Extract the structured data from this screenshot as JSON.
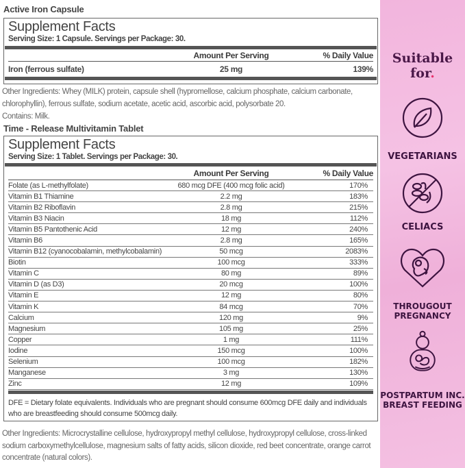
{
  "product1": {
    "name": "Active Iron Capsule",
    "title": "Supplement Facts",
    "serving": "Serving Size: 1 Capsule. Servings per Package: 30.",
    "col_amount": "Amount Per Serving",
    "col_dv": "% Daily Value",
    "rows": [
      {
        "name": "Iron (ferrous sulfate)",
        "amount": "25 mg",
        "dv": "139%"
      }
    ],
    "other_ingredients": "Other Ingredients: Whey (MILK) protein, capsule shell (hypromellose, calcium phosphate, calcium carbonate, chlorophyllin), ferrous sulfate, sodium acetate, acetic acid, ascorbic acid, polysorbate 20.",
    "contains": "Contains: Milk."
  },
  "product2": {
    "name": "Time - Release Multivitamin Tablet",
    "title": "Supplement Facts",
    "serving": "Serving Size: 1 Tablet. Servings per Package: 30.",
    "col_amount": "Amount Per Serving",
    "col_dv": "% Daily Value",
    "rows": [
      {
        "name": "Folate (as L-methylfolate)",
        "amount": "680 mcg DFE (400 mcg folic acid)",
        "dv": "170%"
      },
      {
        "name": "Vitamin B1 Thiamine",
        "amount": "2.2 mg",
        "dv": "183%"
      },
      {
        "name": "Vitamin B2 Riboflavin",
        "amount": "2.8 mg",
        "dv": "215%"
      },
      {
        "name": "Vitamin B3 Niacin",
        "amount": "18 mg",
        "dv": "112%"
      },
      {
        "name": "Vitamin B5 Pantothenic Acid",
        "amount": "12 mg",
        "dv": "240%"
      },
      {
        "name": "Vitamin B6",
        "amount": "2.8 mg",
        "dv": "165%"
      },
      {
        "name": "Vitamin B12 (cyanocobalamin, methylcobalamin)",
        "amount": "50 mcg",
        "dv": "2083%"
      },
      {
        "name": "Biotin",
        "amount": "100 mcg",
        "dv": "333%"
      },
      {
        "name": "Vitamin C",
        "amount": "80 mg",
        "dv": "89%"
      },
      {
        "name": "Vitamin D (as D3)",
        "amount": "20 mcg",
        "dv": "100%"
      },
      {
        "name": "Vitamin E",
        "amount": "12 mg",
        "dv": "80%"
      },
      {
        "name": "Vitamin K",
        "amount": "84 mcg",
        "dv": "70%"
      },
      {
        "name": "Calcium",
        "amount": "120 mg",
        "dv": "9%"
      },
      {
        "name": "Magnesium",
        "amount": "105 mg",
        "dv": "25%"
      },
      {
        "name": "Copper",
        "amount": "1 mg",
        "dv": "111%"
      },
      {
        "name": "Iodine",
        "amount": "150 mcg",
        "dv": "100%"
      },
      {
        "name": "Selenium",
        "amount": "100 mcg",
        "dv": "182%"
      },
      {
        "name": "Manganese",
        "amount": "3 mg",
        "dv": "130%"
      },
      {
        "name": "Zinc",
        "amount": "12 mg",
        "dv": "109%"
      }
    ],
    "note": "DFE = Dietary folate equivalents. Individuals who are pregnant should consume 600mcg DFE daily and individuals who are breastfeeding should consume 500mcg daily.",
    "other_ingredients": "Other Ingredients: Microcrystalline cellulose, hydroxypropyl methyl cellulose, hydroxypropyl cellulose, cross-linked sodium carboxymethylcellulose, magnesium salts of fatty acids, silicon dioxide, red beet concentrate, orange carrot concentrate (natural colors)."
  },
  "sidebar": {
    "heading_line1": "Suitable",
    "heading_line2": "for",
    "heading_dot": ".",
    "accent": "#e8306a",
    "text_color": "#3d1440",
    "bg": "#f2b5dd",
    "items": [
      {
        "icon": "leaf-icon",
        "label": "VEGETARIANS"
      },
      {
        "icon": "gluten-free-icon",
        "label": "CELIACS"
      },
      {
        "icon": "pregnancy-heart-icon",
        "label": "THROUGOUT PREGNANCY"
      },
      {
        "icon": "mother-baby-icon",
        "label": "POSTPARTUM INC. BREAST FEEDING"
      }
    ]
  }
}
